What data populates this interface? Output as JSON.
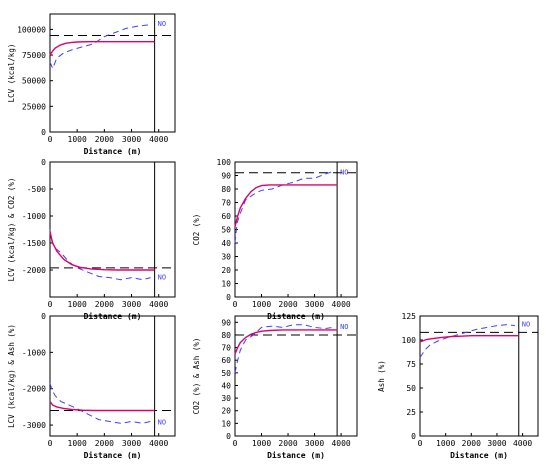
{
  "colors": {
    "observed": "#4040ff",
    "model": "#e0006e",
    "reference": "#000000",
    "axis": "#000000"
  },
  "chart_data": [
    {
      "id": "lcv",
      "type": "line",
      "xlabel": "Distance (m)",
      "ylabel": "LCV (kcal/kg)",
      "xlim": [
        0,
        4600
      ],
      "ylim": [
        0,
        115000
      ],
      "xticks": [
        0,
        1000,
        2000,
        3000,
        4000
      ],
      "yticks": [
        0,
        25000,
        50000,
        75000,
        100000
      ],
      "annotation": "NO",
      "annotation_y": 106000,
      "vline_x": 3850,
      "reference_y": 94000,
      "series": [
        {
          "role": "observed",
          "style": "dashed",
          "x": [
            0,
            100,
            250,
            500,
            800,
            1200,
            1600,
            2000,
            2400,
            2800,
            3200,
            3500,
            3700
          ],
          "y": [
            68000,
            62000,
            72000,
            77000,
            80000,
            83000,
            86000,
            93000,
            97000,
            101000,
            103000,
            104000,
            104500
          ]
        },
        {
          "role": "model",
          "style": "solid",
          "x": [
            0,
            100,
            200,
            400,
            600,
            800,
            1000,
            1400,
            1800,
            2200,
            3000,
            3850
          ],
          "y": [
            75000,
            79000,
            82000,
            85000,
            86500,
            87300,
            87700,
            88000,
            88000,
            88000,
            88000,
            88000
          ]
        }
      ]
    },
    {
      "id": "lcv-co2",
      "type": "line",
      "xlabel": "Distance (m)",
      "ylabel": "LCV (kcal/kg) & CO2 (%)",
      "xlim": [
        0,
        4600
      ],
      "ylim": [
        -2500,
        0
      ],
      "xticks": [
        0,
        1000,
        2000,
        3000,
        4000
      ],
      "yticks": [
        -2000,
        -1500,
        -1000,
        -500,
        0
      ],
      "annotation": "NO",
      "annotation_y": -2120,
      "vline_x": 3850,
      "reference_y": -1960,
      "series": [
        {
          "role": "observed",
          "style": "dashed",
          "x": [
            0,
            80,
            200,
            400,
            700,
            1000,
            1400,
            1800,
            2200,
            2600,
            3000,
            3400,
            3700
          ],
          "y": [
            -1250,
            -1500,
            -1600,
            -1680,
            -1850,
            -1960,
            -2040,
            -2120,
            -2140,
            -2180,
            -2140,
            -2180,
            -2140
          ]
        },
        {
          "role": "model",
          "style": "solid",
          "x": [
            0,
            100,
            250,
            500,
            800,
            1100,
            1500,
            2000,
            2500,
            3000,
            3850
          ],
          "y": [
            -1300,
            -1500,
            -1650,
            -1800,
            -1900,
            -1950,
            -1980,
            -1995,
            -2000,
            -2000,
            -2000
          ]
        }
      ]
    },
    {
      "id": "co2",
      "type": "line",
      "xlabel": "Distance (m)",
      "ylabel": "CO2 (%)",
      "xlim": [
        0,
        4600
      ],
      "ylim": [
        0,
        100
      ],
      "xticks": [
        0,
        1000,
        2000,
        3000,
        4000
      ],
      "yticks": [
        0,
        10,
        20,
        30,
        40,
        50,
        60,
        70,
        80,
        90,
        100
      ],
      "annotation": "NO",
      "annotation_y": 93,
      "vline_x": 3850,
      "reference_y": 92,
      "series": [
        {
          "role": "observed",
          "style": "dashed",
          "x": [
            0,
            80,
            200,
            400,
            700,
            1000,
            1400,
            1800,
            2200,
            2600,
            3000,
            3400,
            3700
          ],
          "y": [
            40,
            55,
            62,
            72,
            76,
            79,
            80,
            83,
            85,
            88,
            88,
            91,
            93
          ]
        },
        {
          "role": "model",
          "style": "solid",
          "x": [
            0,
            100,
            200,
            400,
            600,
            800,
            1000,
            1300,
            1800,
            2500,
            3850
          ],
          "y": [
            52,
            60,
            66,
            73,
            78,
            81,
            82.5,
            83,
            83,
            83,
            83
          ]
        }
      ]
    },
    {
      "id": "lcv-ash",
      "type": "line",
      "xlabel": "Distance (m)",
      "ylabel": "LCV (kcal/kg) & Ash (%)",
      "xlim": [
        0,
        4600
      ],
      "ylim": [
        -3300,
        0
      ],
      "xticks": [
        0,
        1000,
        2000,
        3000,
        4000
      ],
      "yticks": [
        -3000,
        -2000,
        -1000,
        0
      ],
      "annotation": "NO",
      "annotation_y": -2900,
      "vline_x": 3850,
      "reference_y": -2600,
      "series": [
        {
          "role": "observed",
          "style": "dashed",
          "x": [
            0,
            80,
            200,
            400,
            700,
            1000,
            1400,
            1800,
            2200,
            2600,
            3000,
            3400,
            3700
          ],
          "y": [
            -1850,
            -2050,
            -2200,
            -2350,
            -2450,
            -2550,
            -2700,
            -2850,
            -2900,
            -2950,
            -2900,
            -2950,
            -2900
          ]
        },
        {
          "role": "model",
          "style": "solid",
          "x": [
            0,
            100,
            250,
            500,
            800,
            1200,
            1600,
            2000,
            2500,
            3000,
            3850
          ],
          "y": [
            -2350,
            -2450,
            -2500,
            -2540,
            -2570,
            -2590,
            -2600,
            -2600,
            -2600,
            -2600,
            -2600
          ]
        }
      ]
    },
    {
      "id": "co2-ash",
      "type": "line",
      "xlabel": "Distance (m)",
      "ylabel": "CO2 (%) & Ash (%)",
      "xlim": [
        0,
        4600
      ],
      "ylim": [
        0,
        95
      ],
      "xticks": [
        0,
        1000,
        2000,
        3000,
        4000
      ],
      "yticks": [
        0,
        10,
        20,
        30,
        40,
        50,
        60,
        70,
        80,
        90
      ],
      "annotation": "NO",
      "annotation_y": 87,
      "vline_x": 3850,
      "reference_y": 80,
      "series": [
        {
          "role": "observed",
          "style": "dashed",
          "x": [
            0,
            80,
            200,
            400,
            700,
            1000,
            1400,
            1800,
            2200,
            2600,
            3000,
            3400,
            3700
          ],
          "y": [
            50,
            58,
            68,
            76,
            80,
            86,
            87,
            86,
            88,
            88,
            86,
            85,
            86
          ]
        },
        {
          "role": "model",
          "style": "solid",
          "x": [
            0,
            100,
            200,
            400,
            600,
            800,
            1000,
            1300,
            1800,
            2500,
            3850
          ],
          "y": [
            65,
            70,
            74,
            78,
            80.5,
            82,
            83,
            83.5,
            84,
            84,
            84
          ]
        }
      ]
    },
    {
      "id": "ash",
      "type": "line",
      "xlabel": "Distance (m)",
      "ylabel": "Ash (%)",
      "xlim": [
        0,
        4600
      ],
      "ylim": [
        0,
        125
      ],
      "xticks": [
        0,
        1000,
        2000,
        3000,
        4000
      ],
      "yticks": [
        0,
        25,
        50,
        75,
        100,
        125
      ],
      "annotation": "NO",
      "annotation_y": 117,
      "vline_x": 3850,
      "reference_y": 108,
      "series": [
        {
          "role": "observed",
          "style": "dashed",
          "x": [
            0,
            80,
            200,
            400,
            700,
            1000,
            1400,
            1800,
            2200,
            2600,
            3000,
            3400,
            3700
          ],
          "y": [
            82,
            85,
            90,
            95,
            99,
            102,
            105,
            108,
            111,
            113,
            115,
            116,
            115
          ]
        },
        {
          "role": "model",
          "style": "solid",
          "x": [
            0,
            100,
            250,
            500,
            800,
            1200,
            1600,
            2000,
            2500,
            3000,
            3850
          ],
          "y": [
            98,
            99,
            100.5,
            101.5,
            102.5,
            103.5,
            104,
            104.5,
            104.5,
            104.5,
            104.5
          ]
        }
      ]
    }
  ]
}
